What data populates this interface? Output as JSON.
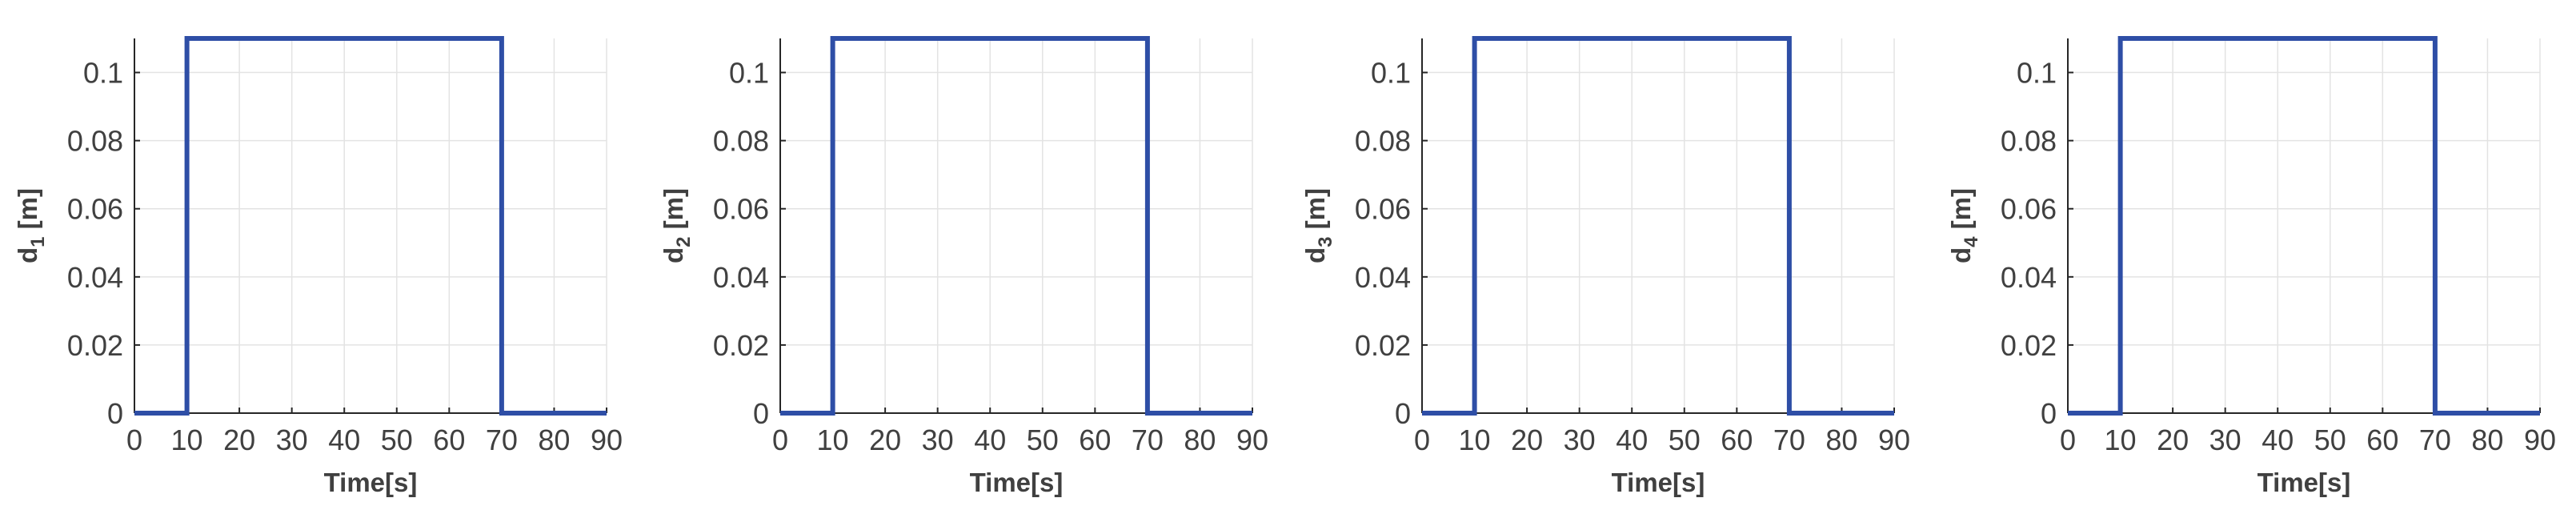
{
  "chart_data": [
    {
      "type": "line",
      "xlabel": "Time[s]",
      "ylabel": {
        "base": "d",
        "sub": "1",
        "unit": " [m]"
      },
      "xlim": [
        0,
        90
      ],
      "ylim": [
        0,
        0.11
      ],
      "xticks": [
        0,
        10,
        20,
        30,
        40,
        50,
        60,
        70,
        80,
        90
      ],
      "yticks": [
        0,
        0.02,
        0.04,
        0.06,
        0.08,
        0.1
      ],
      "ytick_labels": [
        "0",
        "0.02",
        "0.04",
        "0.06",
        "0.08",
        "0.1"
      ],
      "grid": true,
      "series": [
        {
          "color": "#2e4ea6",
          "x": [
            0,
            10,
            10,
            70,
            70,
            90
          ],
          "y": [
            0,
            0,
            0.11,
            0.11,
            0,
            0
          ]
        }
      ]
    },
    {
      "type": "line",
      "xlabel": "Time[s]",
      "ylabel": {
        "base": "d",
        "sub": "2",
        "unit": " [m]"
      },
      "xlim": [
        0,
        90
      ],
      "ylim": [
        0,
        0.11
      ],
      "xticks": [
        0,
        10,
        20,
        30,
        40,
        50,
        60,
        70,
        80,
        90
      ],
      "yticks": [
        0,
        0.02,
        0.04,
        0.06,
        0.08,
        0.1
      ],
      "ytick_labels": [
        "0",
        "0.02",
        "0.04",
        "0.06",
        "0.08",
        "0.1"
      ],
      "grid": true,
      "series": [
        {
          "color": "#2e4ea6",
          "x": [
            0,
            10,
            10,
            70,
            70,
            90
          ],
          "y": [
            0,
            0,
            0.11,
            0.11,
            0,
            0
          ]
        }
      ]
    },
    {
      "type": "line",
      "xlabel": "Time[s]",
      "ylabel": {
        "base": "d",
        "sub": "3",
        "unit": " [m]"
      },
      "xlim": [
        0,
        90
      ],
      "ylim": [
        0,
        0.11
      ],
      "xticks": [
        0,
        10,
        20,
        30,
        40,
        50,
        60,
        70,
        80,
        90
      ],
      "yticks": [
        0,
        0.02,
        0.04,
        0.06,
        0.08,
        0.1
      ],
      "ytick_labels": [
        "0",
        "0.02",
        "0.04",
        "0.06",
        "0.08",
        "0.1"
      ],
      "grid": true,
      "series": [
        {
          "color": "#2e4ea6",
          "x": [
            0,
            10,
            10,
            70,
            70,
            90
          ],
          "y": [
            0,
            0,
            0.11,
            0.11,
            0,
            0
          ]
        }
      ]
    },
    {
      "type": "line",
      "xlabel": "Time[s]",
      "ylabel": {
        "base": "d",
        "sub": "4",
        "unit": " [m]"
      },
      "xlim": [
        0,
        90
      ],
      "ylim": [
        0,
        0.11
      ],
      "xticks": [
        0,
        10,
        20,
        30,
        40,
        50,
        60,
        70,
        80,
        90
      ],
      "yticks": [
        0,
        0.02,
        0.04,
        0.06,
        0.08,
        0.1
      ],
      "ytick_labels": [
        "0",
        "0.02",
        "0.04",
        "0.06",
        "0.08",
        "0.1"
      ],
      "grid": true,
      "series": [
        {
          "color": "#2e4ea6",
          "x": [
            0,
            10,
            10,
            70,
            70,
            90
          ],
          "y": [
            0,
            0,
            0.11,
            0.11,
            0,
            0
          ]
        }
      ]
    }
  ]
}
